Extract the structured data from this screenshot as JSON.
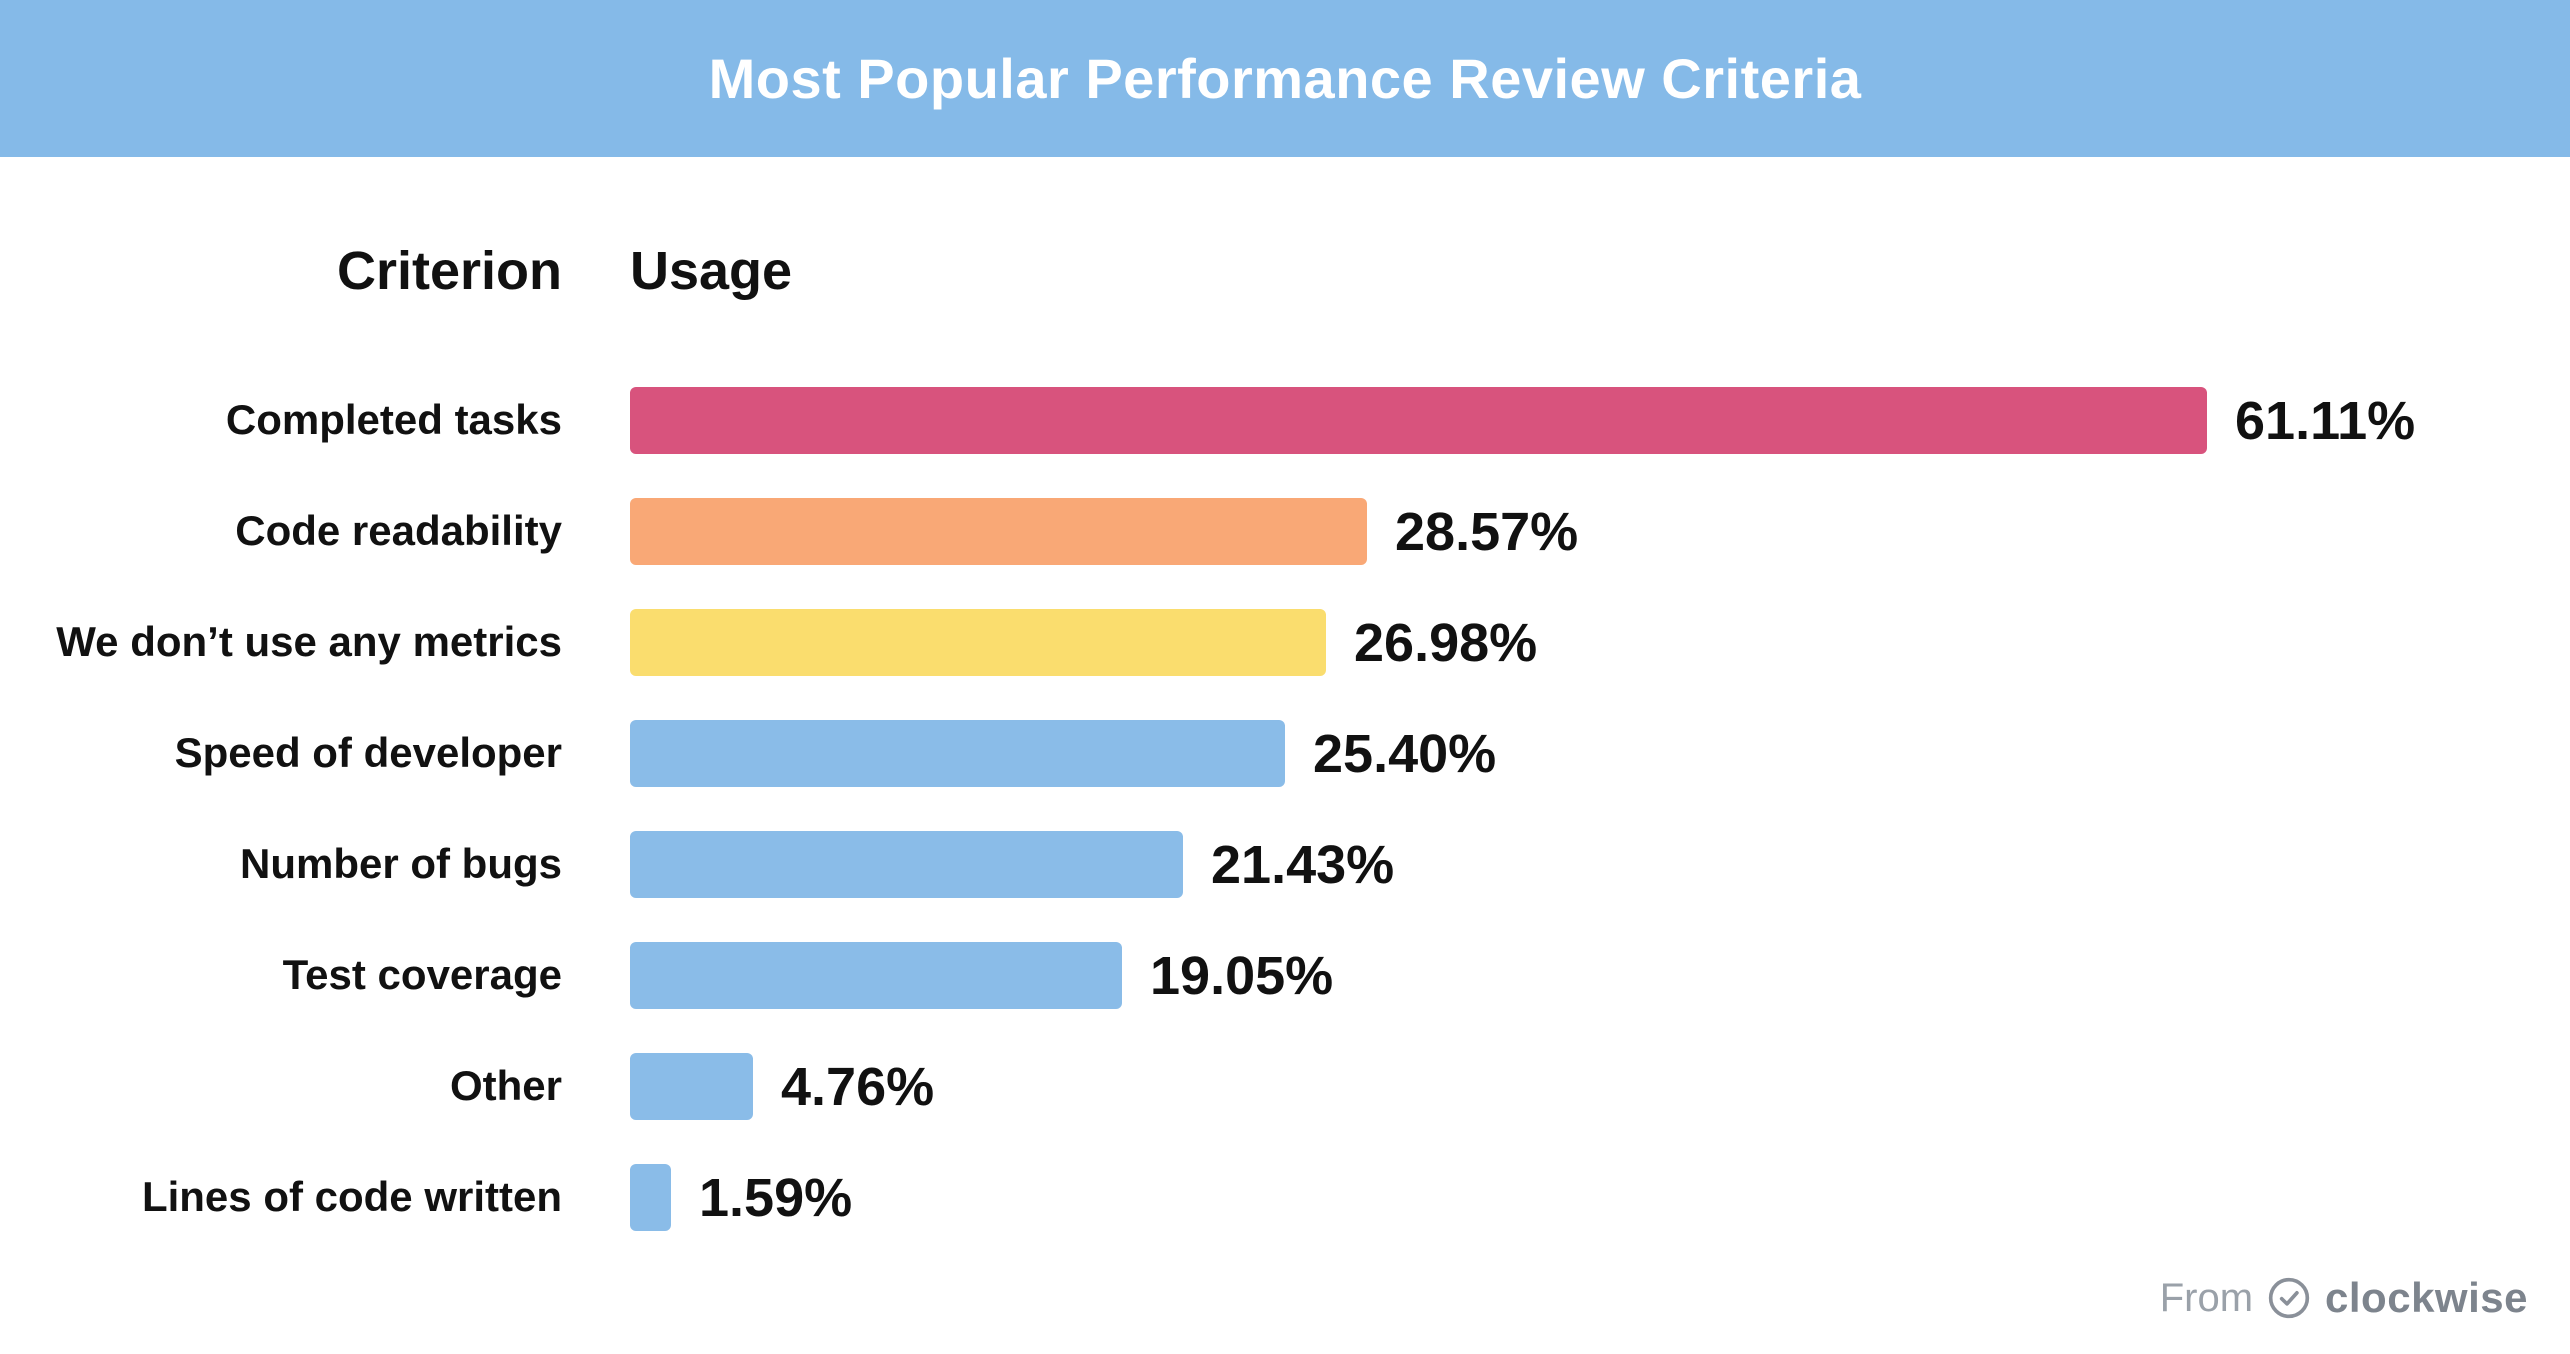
{
  "header": {
    "title": "Most Popular Performance Review Criteria",
    "background_color": "#85BAE8"
  },
  "columns": {
    "criterion_label": "Criterion",
    "usage_label": "Usage"
  },
  "footer": {
    "from_label": "From",
    "brand": "clockwise",
    "icon": "clockwise-clock-check-icon"
  },
  "colors": {
    "header_bg": "#85BAE8",
    "default_bar_blue": "#8ABCE8",
    "highlight_pink": "#D8537D",
    "highlight_orange": "#F9A876",
    "highlight_yellow": "#FADD6E",
    "text": "#111111",
    "footer_gray": "#9aa1a9"
  },
  "chart_data": {
    "type": "bar",
    "orientation": "horizontal",
    "title": "Most Popular Performance Review Criteria",
    "xlabel": "Usage",
    "ylabel": "Criterion",
    "xlim": [
      0,
      65
    ],
    "grid": false,
    "legend": "none",
    "categories": [
      "Completed tasks",
      "Code readability",
      "We don’t use any metrics",
      "Speed of developer",
      "Number of bugs",
      "Test coverage",
      "Other",
      "Lines of code written"
    ],
    "values": [
      61.11,
      28.57,
      26.98,
      25.4,
      21.43,
      19.05,
      4.76,
      1.59
    ],
    "value_labels": [
      "61.11%",
      "28.57%",
      "26.98%",
      "25.40%",
      "21.43%",
      "19.05%",
      "4.76%",
      "1.59%"
    ],
    "bar_colors": [
      "#D8537D",
      "#F9A876",
      "#FADD6E",
      "#8ABCE8",
      "#8ABCE8",
      "#8ABCE8",
      "#8ABCE8",
      "#8ABCE8"
    ]
  }
}
